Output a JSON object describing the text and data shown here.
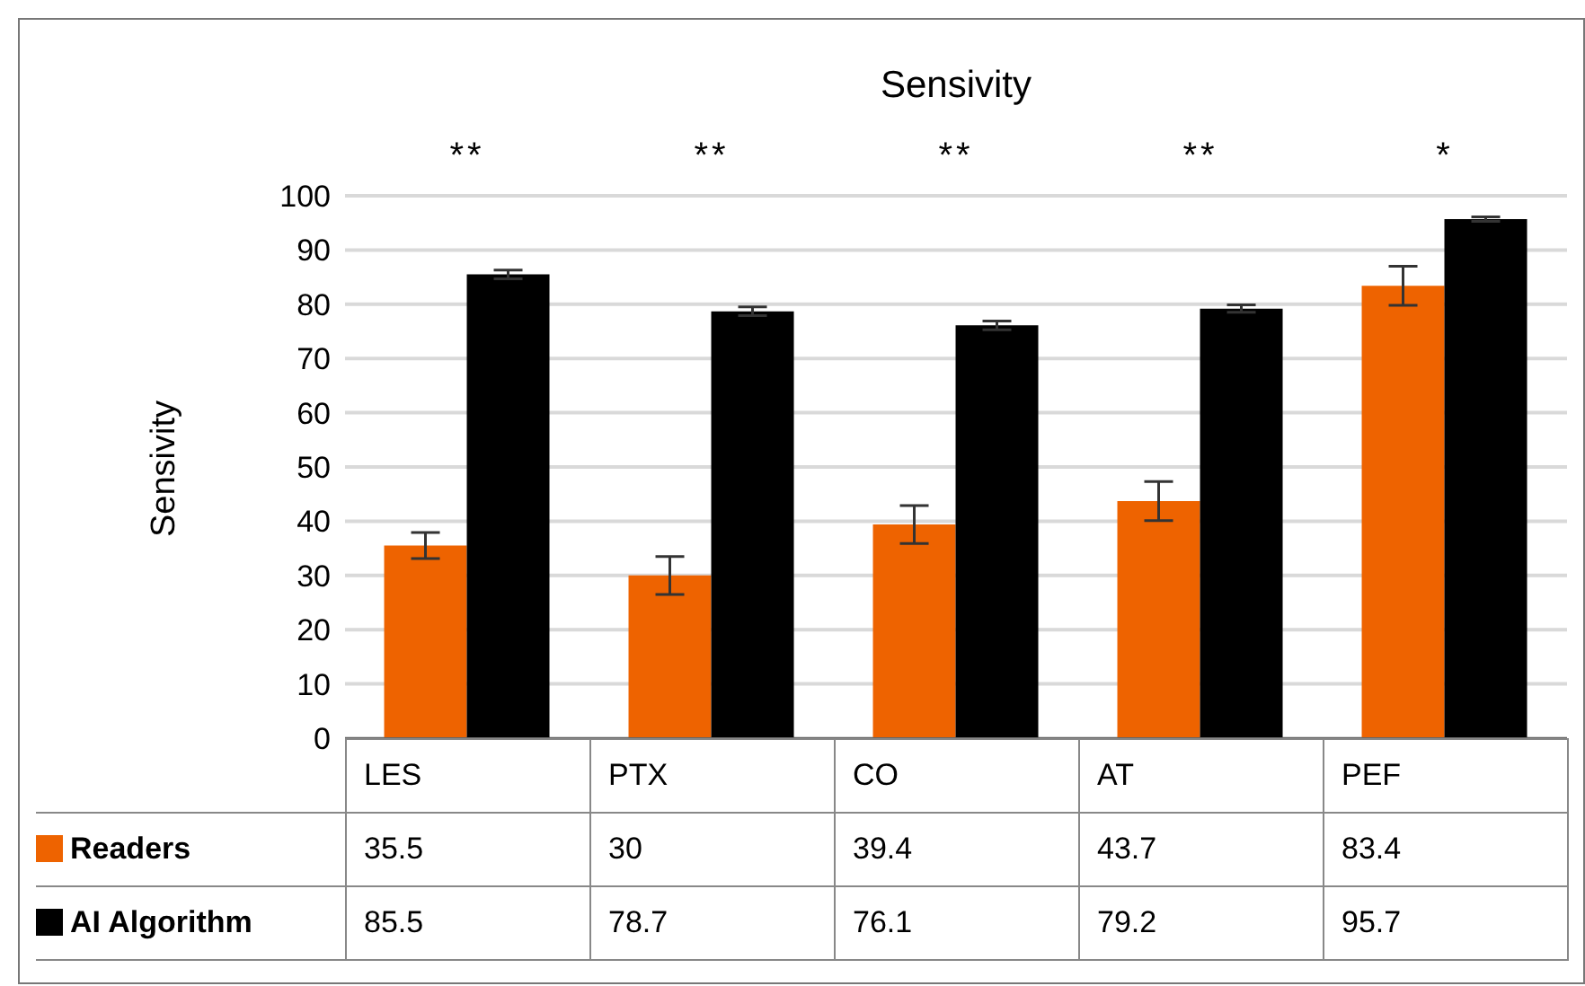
{
  "chart_data": {
    "type": "bar",
    "title": "Sensivity",
    "ylabel": "Sensivity",
    "categories": [
      "LES",
      "PTX",
      "CO",
      "AT",
      "PEF"
    ],
    "series": [
      {
        "name": "Readers",
        "color": "#ee6300",
        "values": [
          35.5,
          30,
          39.4,
          43.7,
          83.4
        ],
        "errors": [
          2.4,
          3.5,
          3.5,
          3.6,
          3.6
        ]
      },
      {
        "name": "AI Algorithm",
        "color": "#000000",
        "values": [
          85.5,
          78.7,
          76.1,
          79.2,
          95.7
        ],
        "errors": [
          0.8,
          0.8,
          0.8,
          0.7,
          0.4
        ]
      }
    ],
    "annotations": [
      "**",
      "**",
      "**",
      "**",
      "*"
    ],
    "ylim": [
      0,
      100
    ],
    "yticks": [
      0,
      10,
      20,
      30,
      40,
      50,
      60,
      70,
      80,
      90,
      100
    ],
    "grid": "y",
    "legend": "bottom",
    "data_labels": true
  }
}
